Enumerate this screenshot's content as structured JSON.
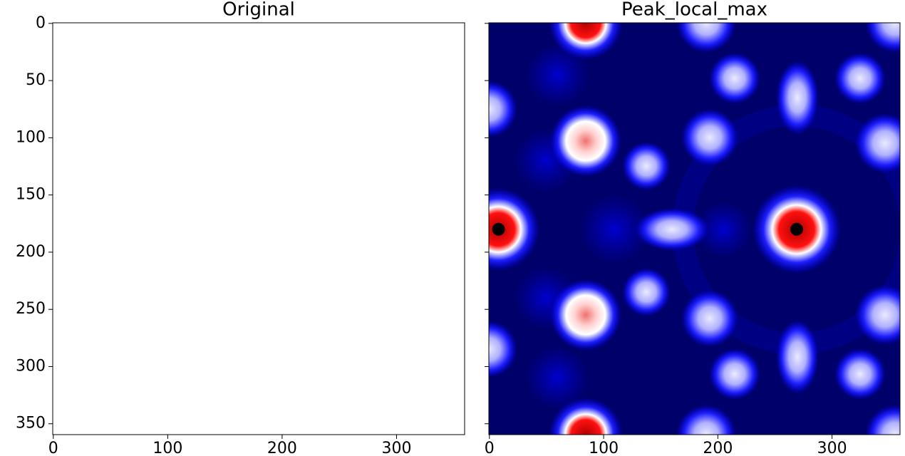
{
  "chart_data": [
    {
      "type": "image",
      "title": "Original",
      "xlim": [
        -0.5,
        359.5
      ],
      "ylim": [
        359.5,
        -0.5
      ],
      "xticks": [
        0,
        100,
        200,
        300
      ],
      "yticks": [
        0,
        50,
        100,
        150,
        200,
        250,
        300,
        350
      ]
    },
    {
      "type": "scatter",
      "title": "Peak_local_max",
      "x": [
        8,
        269
      ],
      "y": [
        180,
        180
      ],
      "color": "#000000",
      "xlim": [
        -0.5,
        359.5
      ],
      "ylim": [
        359.5,
        -0.5
      ],
      "xticks": [
        0,
        100,
        200,
        300
      ],
      "sharey": true
    }
  ]
}
